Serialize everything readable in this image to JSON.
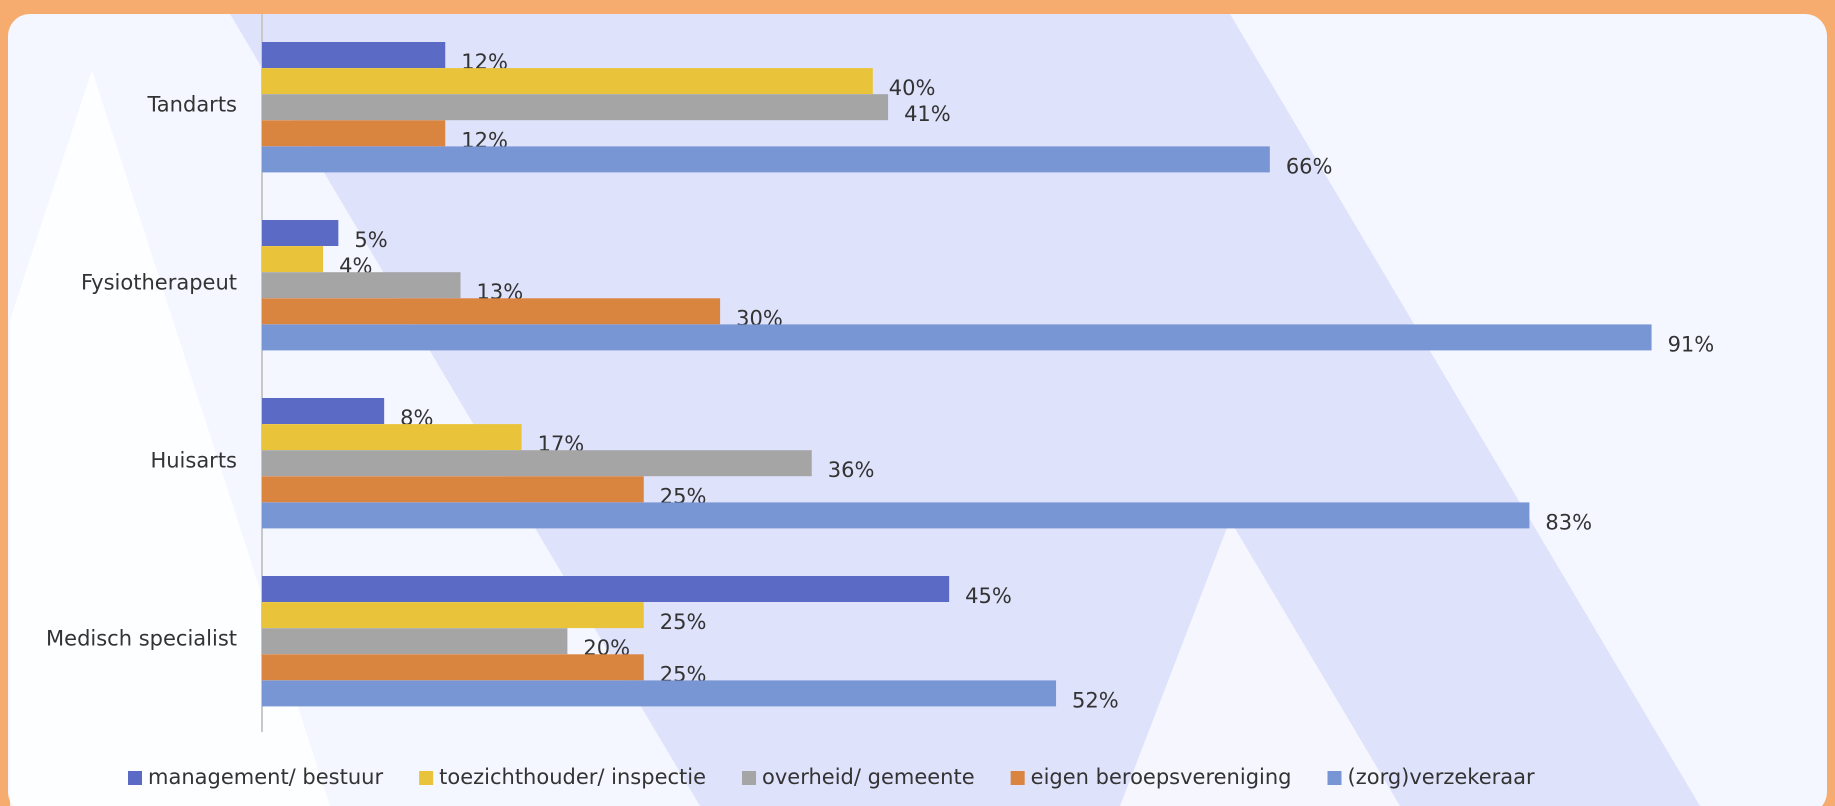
{
  "chart_data": {
    "type": "bar",
    "orientation": "horizontal",
    "categories": [
      "Tandarts",
      "Fysiotherapeut",
      "Huisarts",
      "Medisch specialist"
    ],
    "xlim": [
      0,
      100
    ],
    "series": [
      {
        "name": "management/ bestuur",
        "color": "#5b6ac4",
        "values": [
          12,
          5,
          8,
          45
        ],
        "value_labels": [
          "12%",
          "5%",
          "8%",
          "45%"
        ]
      },
      {
        "name": "toezichthouder/ inspectie",
        "color": "#e9c43a",
        "values": [
          40,
          4,
          17,
          25
        ],
        "value_labels": [
          "40%",
          "4%",
          "17%",
          "25%"
        ]
      },
      {
        "name": "overheid/ gemeente",
        "color": "#a5a5a5",
        "values": [
          41,
          13,
          36,
          20
        ],
        "value_labels": [
          "41%",
          "13%",
          "36%",
          "20%"
        ]
      },
      {
        "name": "eigen beroepsvereniging",
        "color": "#d9843f",
        "values": [
          12,
          30,
          25,
          25
        ],
        "value_labels": [
          "12%",
          "30%",
          "25%",
          "25%"
        ]
      },
      {
        "name": "(zorg)verzekeraar",
        "color": "#7896d4",
        "values": [
          66,
          91,
          83,
          52
        ],
        "value_labels": [
          "66%",
          "91%",
          "83%",
          "52%"
        ]
      }
    ],
    "legend": "bottom"
  }
}
